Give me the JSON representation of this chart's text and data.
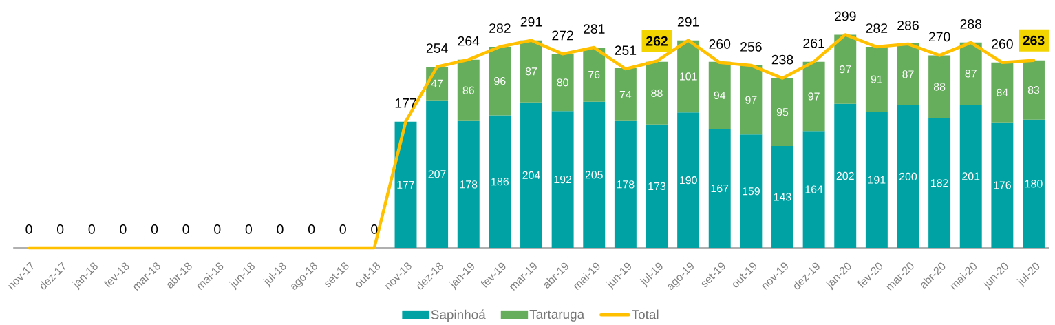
{
  "chart_data": {
    "type": "bar",
    "stacked": true,
    "legend": "bottom",
    "tick_labels": "x",
    "categories": [
      "nov-17",
      "dez-17",
      "jan-18",
      "fev-18",
      "mar-18",
      "abr-18",
      "mai-18",
      "jun-18",
      "jul-18",
      "ago-18",
      "set-18",
      "out-18",
      "nov-18",
      "dez-18",
      "jan-19",
      "fev-19",
      "mar-19",
      "abr-19",
      "mai-19",
      "jun-19",
      "jul-19",
      "ago-19",
      "set-19",
      "out-19",
      "nov-19",
      "dez-19",
      "jan-20",
      "fev-20",
      "mar-20",
      "abr-20",
      "mai-20",
      "jun-20",
      "jul-20"
    ],
    "series": [
      {
        "name": "Sapinhoá",
        "color": "#00a2a4",
        "values": [
          null,
          null,
          null,
          null,
          null,
          null,
          null,
          null,
          null,
          null,
          null,
          null,
          177,
          207,
          178,
          186,
          204,
          192,
          205,
          178,
          173,
          190,
          167,
          159,
          143,
          164,
          202,
          191,
          200,
          182,
          201,
          176,
          180
        ],
        "value_labels": [
          null,
          null,
          null,
          null,
          null,
          null,
          null,
          null,
          null,
          null,
          null,
          null,
          "177",
          "207",
          "178",
          "186",
          "204",
          "192",
          "205",
          "178",
          "173",
          "190",
          "167",
          "159",
          "143",
          "164",
          "202",
          "191",
          "200",
          "182",
          "201",
          "176",
          "180"
        ]
      },
      {
        "name": "Tartaruga",
        "color": "#66ad5c",
        "values": [
          null,
          null,
          null,
          null,
          null,
          null,
          null,
          null,
          null,
          null,
          null,
          null,
          null,
          47,
          86,
          96,
          87,
          80,
          76,
          74,
          88,
          101,
          94,
          97,
          95,
          97,
          97,
          91,
          87,
          88,
          87,
          84,
          83
        ],
        "value_labels": [
          null,
          null,
          null,
          null,
          null,
          null,
          null,
          null,
          null,
          null,
          null,
          null,
          null,
          "47",
          "86",
          "96",
          "87",
          "80",
          "76",
          "74",
          "88",
          "101",
          "94",
          "97",
          "95",
          "97",
          "97",
          "91",
          "87",
          "88",
          "87",
          "84",
          "83"
        ]
      },
      {
        "name": "Total",
        "type": "line",
        "color": "#ffc000",
        "values": [
          0,
          0,
          0,
          0,
          0,
          0,
          0,
          0,
          0,
          0,
          0,
          0,
          177,
          254,
          264,
          282,
          291,
          272,
          281,
          251,
          262,
          291,
          260,
          256,
          238,
          261,
          299,
          282,
          286,
          270,
          288,
          260,
          263
        ],
        "value_labels": [
          "0",
          "0",
          "0",
          "0",
          "0",
          "0",
          "0",
          "0",
          "0",
          "0",
          "0",
          "0",
          "177",
          "254",
          "264",
          "282",
          "291",
          "272",
          "281",
          "251",
          null,
          "291",
          "260",
          "256",
          "238",
          "261",
          "299",
          "282",
          "286",
          "270",
          "288",
          "260",
          null
        ]
      }
    ],
    "annotations": [
      {
        "text": "262",
        "x": "jul-19",
        "y": 262
      },
      {
        "text": "263",
        "x": "jul-20",
        "y": 263
      }
    ]
  }
}
